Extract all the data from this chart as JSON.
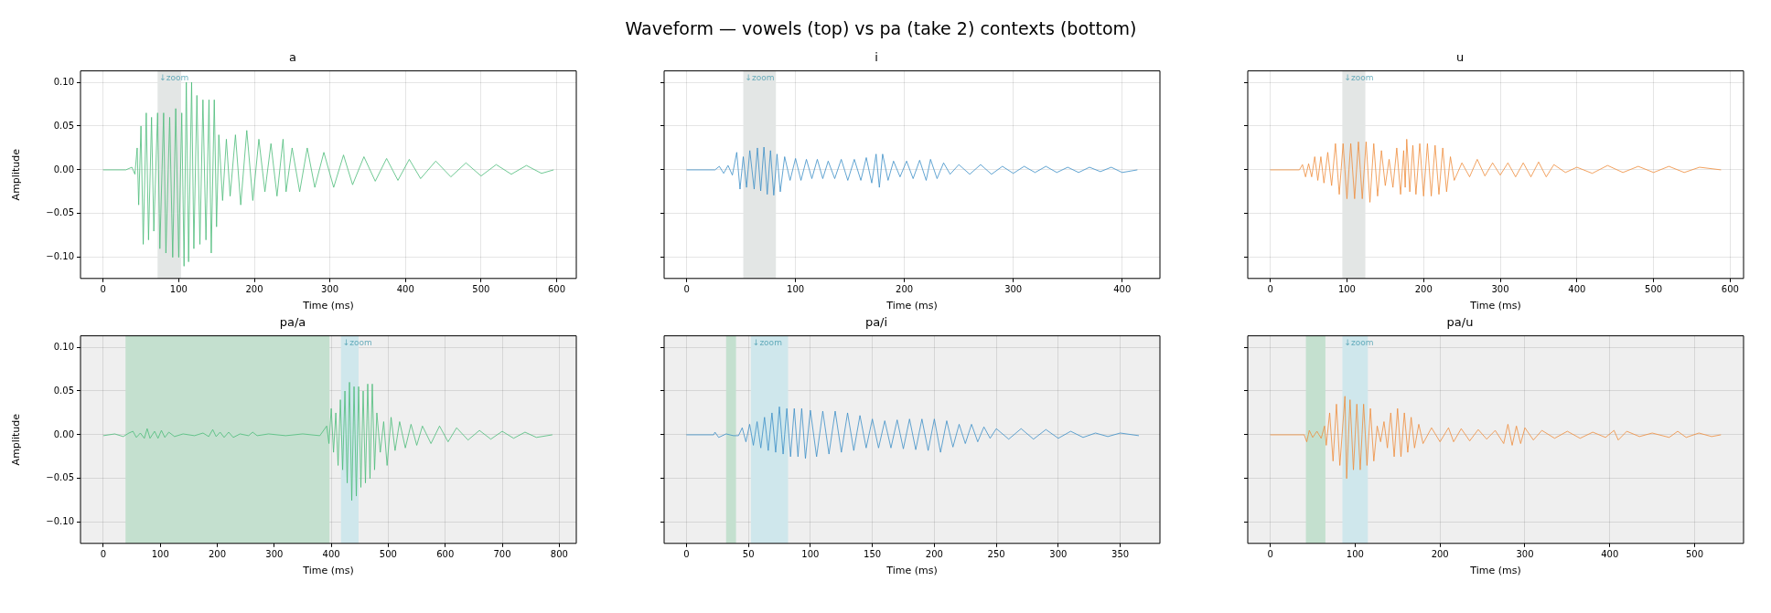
{
  "chart_data": [
    {
      "type": "line",
      "title": "a",
      "xlabel": "Time (ms)",
      "ylabel": "Amplitude",
      "annotations": [
        "Waveform — vowels (top) vs pa (take 2) contexts (bottom)"
      ],
      "xlim": [
        -30,
        626
      ],
      "ylim": [
        -0.124,
        0.113
      ],
      "xticks": [
        0,
        100,
        200,
        300,
        400,
        500,
        600
      ],
      "yticks": [
        {
          "value": -0.1,
          "label": "−0.10"
        },
        {
          "value": -0.05,
          "label": "−0.05"
        },
        {
          "value": 0,
          "label": "0.00"
        },
        {
          "value": 0.05,
          "label": "0.05"
        },
        {
          "value": 0.1,
          "label": "0.10"
        }
      ],
      "grid": true,
      "bands": [
        {
          "axis": "x",
          "from": 72,
          "to": 103,
          "label": "↓zoom",
          "color": "#e3e6e5"
        }
      ],
      "series": [
        {
          "color": "#4bbb78",
          "x": [
            0,
            30,
            38,
            42,
            45,
            47,
            50,
            53,
            57,
            60,
            64,
            67,
            72,
            75,
            80,
            83,
            88,
            92,
            96,
            100,
            104,
            107,
            110,
            113,
            117,
            120,
            124,
            128,
            132,
            136,
            140,
            143,
            147,
            150,
            153,
            158,
            163,
            168,
            175,
            182,
            190,
            198,
            206,
            214,
            222,
            230,
            238,
            242,
            250,
            260,
            270,
            280,
            292,
            305,
            318,
            330,
            345,
            360,
            375,
            390,
            405,
            420,
            440,
            460,
            480,
            500,
            520,
            540,
            560,
            580,
            596
          ],
          "values": [
            0,
            0,
            0.003,
            -0.005,
            0.025,
            -0.04,
            0.05,
            -0.085,
            0.065,
            -0.08,
            0.06,
            -0.07,
            0.065,
            -0.09,
            0.065,
            -0.095,
            0.06,
            -0.1,
            0.07,
            -0.1,
            0.065,
            -0.11,
            0.1,
            -0.105,
            0.1,
            -0.09,
            0.085,
            -0.085,
            0.08,
            -0.08,
            0.08,
            -0.095,
            0.08,
            -0.065,
            0.04,
            -0.035,
            0.035,
            -0.03,
            0.04,
            -0.04,
            0.045,
            -0.035,
            0.035,
            -0.025,
            0.03,
            -0.03,
            0.035,
            -0.025,
            0.025,
            -0.025,
            0.025,
            -0.02,
            0.02,
            -0.02,
            0.017,
            -0.017,
            0.015,
            -0.013,
            0.013,
            -0.012,
            0.012,
            -0.01,
            0.01,
            -0.008,
            0.008,
            -0.007,
            0.006,
            -0.005,
            0.005,
            -0.004,
            0
          ]
        }
      ]
    },
    {
      "type": "line",
      "title": "i",
      "xlabel": "Time (ms)",
      "xlim": [
        -20.7,
        434.7
      ],
      "ylim": [
        -0.124,
        0.113
      ],
      "xticks": [
        0,
        100,
        200,
        300,
        400
      ],
      "yticks": [
        {
          "value": -0.1,
          "label": null
        },
        {
          "value": -0.05,
          "label": null
        },
        {
          "value": 0,
          "label": null
        },
        {
          "value": 0.05,
          "label": null
        },
        {
          "value": 0.1,
          "label": null
        }
      ],
      "grid": true,
      "tick_labels": "x",
      "bands": [
        {
          "axis": "x",
          "from": 52,
          "to": 82,
          "label": "↓zoom",
          "color": "#e3e6e5"
        }
      ],
      "series": [
        {
          "color": "#3b8ec6",
          "x": [
            0,
            26,
            30,
            34,
            38,
            42,
            46,
            49,
            52,
            55,
            58,
            62,
            65,
            68,
            71,
            74,
            77,
            80,
            83,
            86,
            90,
            95,
            100,
            105,
            110,
            115,
            120,
            125,
            130,
            136,
            142,
            148,
            154,
            160,
            165,
            170,
            174,
            177,
            180,
            185,
            190,
            196,
            202,
            208,
            214,
            220,
            224,
            230,
            236,
            242,
            250,
            260,
            270,
            280,
            290,
            300,
            310,
            320,
            330,
            340,
            350,
            360,
            370,
            380,
            390,
            400,
            414
          ],
          "values": [
            0,
            0,
            0.004,
            -0.004,
            0.005,
            -0.006,
            0.02,
            -0.022,
            0.015,
            -0.02,
            0.022,
            -0.022,
            0.025,
            -0.024,
            0.026,
            -0.028,
            0.022,
            -0.029,
            0.018,
            -0.025,
            0.015,
            -0.012,
            0.013,
            -0.012,
            0.012,
            -0.01,
            0.012,
            -0.01,
            0.01,
            -0.01,
            0.012,
            -0.012,
            0.012,
            -0.012,
            0.014,
            -0.015,
            0.018,
            -0.02,
            0.018,
            -0.012,
            0.01,
            -0.008,
            0.01,
            -0.01,
            0.011,
            -0.012,
            0.012,
            -0.01,
            0.008,
            -0.005,
            0.006,
            -0.005,
            0.006,
            -0.005,
            0.004,
            -0.004,
            0.004,
            -0.003,
            0.004,
            -0.003,
            0.003,
            -0.003,
            0.003,
            -0.002,
            0.003,
            -0.003,
            0
          ]
        }
      ]
    },
    {
      "type": "line",
      "title": "u",
      "xlabel": "Time (ms)",
      "xlim": [
        -29.4,
        617.4
      ],
      "ylim": [
        -0.124,
        0.113
      ],
      "xticks": [
        0,
        100,
        200,
        300,
        400,
        500,
        600
      ],
      "yticks": [
        {
          "value": -0.1,
          "label": null
        },
        {
          "value": -0.05,
          "label": null
        },
        {
          "value": 0,
          "label": null
        },
        {
          "value": 0.05,
          "label": null
        },
        {
          "value": 0.1,
          "label": null
        }
      ],
      "grid": true,
      "tick_labels": "x",
      "bands": [
        {
          "axis": "x",
          "from": 94,
          "to": 124,
          "label": "↓zoom",
          "color": "#e3e6e5"
        }
      ],
      "series": [
        {
          "color": "#ef8c3a",
          "x": [
            0,
            38,
            42,
            46,
            50,
            54,
            58,
            62,
            66,
            70,
            75,
            80,
            85,
            90,
            95,
            100,
            105,
            110,
            115,
            120,
            125,
            130,
            135,
            140,
            145,
            150,
            155,
            160,
            165,
            170,
            174,
            176,
            178,
            182,
            186,
            190,
            195,
            200,
            205,
            210,
            215,
            220,
            225,
            230,
            235,
            240,
            250,
            260,
            270,
            280,
            290,
            300,
            310,
            320,
            330,
            340,
            350,
            360,
            370,
            385,
            400,
            420,
            440,
            460,
            480,
            500,
            520,
            540,
            560,
            588
          ],
          "values": [
            0,
            0,
            0.006,
            -0.008,
            0.007,
            -0.008,
            0.015,
            -0.012,
            0.015,
            -0.015,
            0.02,
            -0.018,
            0.03,
            -0.028,
            0.03,
            -0.033,
            0.03,
            -0.033,
            0.032,
            -0.033,
            0.032,
            -0.037,
            0.03,
            -0.03,
            0.022,
            -0.018,
            0.012,
            -0.02,
            0.025,
            -0.028,
            0.022,
            -0.02,
            0.035,
            -0.025,
            0.028,
            -0.028,
            0.03,
            -0.03,
            0.03,
            -0.03,
            0.028,
            -0.028,
            0.025,
            -0.025,
            0.015,
            -0.012,
            0.008,
            -0.008,
            0.012,
            -0.007,
            0.008,
            -0.006,
            0.008,
            -0.008,
            0.008,
            -0.008,
            0.009,
            -0.008,
            0.006,
            -0.003,
            0.003,
            -0.004,
            0.005,
            -0.003,
            0.004,
            -0.003,
            0.004,
            -0.003,
            0.003,
            0
          ]
        }
      ]
    },
    {
      "type": "line",
      "title": "pa/a",
      "xlabel": "Time (ms)",
      "ylabel": "Amplitude",
      "xlim": [
        -40,
        830
      ],
      "ylim": [
        -0.124,
        0.113
      ],
      "xticks": [
        0,
        100,
        200,
        300,
        400,
        500,
        600,
        700,
        800
      ],
      "yticks": [
        {
          "value": -0.1,
          "label": "−0.10"
        },
        {
          "value": -0.05,
          "label": "−0.05"
        },
        {
          "value": 0,
          "label": "0.00"
        },
        {
          "value": 0.05,
          "label": "0.05"
        },
        {
          "value": 0.1,
          "label": "0.10"
        }
      ],
      "grid": true,
      "bands": [
        {
          "axis": "x",
          "from": 39,
          "to": 397,
          "color": "#c4e0cf"
        },
        {
          "axis": "x",
          "from": 417,
          "to": 448,
          "label": "↓zoom",
          "color": "#cfe7ec"
        }
      ],
      "series": [
        {
          "color": "#4bbb78",
          "x": [
            0,
            20,
            35,
            45,
            52,
            58,
            65,
            72,
            77,
            82,
            90,
            96,
            102,
            108,
            115,
            125,
            140,
            160,
            175,
            185,
            192,
            198,
            205,
            212,
            220,
            228,
            240,
            255,
            262,
            270,
            290,
            320,
            350,
            380,
            392,
            396,
            400,
            404,
            408,
            412,
            416,
            420,
            424,
            428,
            432,
            436,
            440,
            444,
            448,
            452,
            456,
            460,
            464,
            468,
            472,
            476,
            480,
            486,
            492,
            498,
            505,
            512,
            520,
            530,
            540,
            550,
            560,
            575,
            590,
            605,
            620,
            640,
            660,
            680,
            700,
            720,
            740,
            760,
            788
          ],
          "values": [
            -0.001,
            0.001,
            -0.002,
            0.002,
            0.004,
            -0.003,
            0.002,
            -0.004,
            0.007,
            -0.004,
            0.004,
            -0.004,
            0.005,
            -0.003,
            0.003,
            -0.002,
            0.001,
            -0.001,
            0.002,
            -0.002,
            0.006,
            -0.002,
            0.003,
            -0.003,
            0.003,
            -0.003,
            0.001,
            -0.001,
            0.003,
            -0.001,
            0.001,
            -0.001,
            0.001,
            -0.001,
            0.01,
            -0.01,
            0.03,
            -0.02,
            0.025,
            -0.035,
            0.04,
            -0.04,
            0.05,
            -0.055,
            0.06,
            -0.075,
            0.055,
            -0.07,
            0.055,
            -0.06,
            0.05,
            -0.055,
            0.058,
            -0.05,
            0.058,
            -0.04,
            0.025,
            -0.02,
            0.015,
            -0.035,
            0.02,
            -0.018,
            0.015,
            -0.015,
            0.012,
            -0.012,
            0.01,
            -0.01,
            0.01,
            -0.008,
            0.008,
            -0.006,
            0.005,
            -0.005,
            0.004,
            -0.004,
            0.003,
            -0.003,
            0
          ]
        }
      ]
    },
    {
      "type": "line",
      "title": "pa/i",
      "xlabel": "Time (ms)",
      "xlim": [
        -18,
        382
      ],
      "ylim": [
        -0.124,
        0.113
      ],
      "xticks": [
        0,
        50,
        100,
        150,
        200,
        250,
        300,
        350
      ],
      "yticks": [
        {
          "value": -0.1,
          "label": null
        },
        {
          "value": -0.05,
          "label": null
        },
        {
          "value": 0,
          "label": null
        },
        {
          "value": 0.05,
          "label": null
        },
        {
          "value": 0.1,
          "label": null
        }
      ],
      "grid": true,
      "tick_labels": "x",
      "bands": [
        {
          "axis": "x",
          "from": 32,
          "to": 40,
          "color": "#c4e0cf"
        },
        {
          "axis": "x",
          "from": 52,
          "to": 82,
          "label": "↓zoom",
          "color": "#cfe7ec"
        }
      ],
      "series": [
        {
          "color": "#3b8ec6",
          "x": [
            0,
            22,
            23,
            26,
            32,
            38,
            42,
            45,
            48,
            51,
            54,
            57,
            60,
            63,
            66,
            69,
            72,
            75,
            78,
            81,
            84,
            87,
            90,
            93,
            96,
            100,
            105,
            110,
            115,
            120,
            125,
            130,
            135,
            140,
            145,
            150,
            155,
            160,
            165,
            170,
            175,
            180,
            185,
            190,
            195,
            200,
            205,
            210,
            215,
            220,
            225,
            230,
            235,
            240,
            245,
            250,
            260,
            270,
            280,
            290,
            300,
            310,
            320,
            330,
            340,
            350,
            365
          ],
          "values": [
            0,
            0,
            0.003,
            -0.003,
            0.001,
            -0.001,
            -0.001,
            0.008,
            -0.008,
            0.012,
            -0.012,
            0.015,
            -0.015,
            0.02,
            -0.018,
            0.025,
            -0.02,
            0.032,
            -0.022,
            0.03,
            -0.025,
            0.03,
            -0.025,
            0.03,
            -0.027,
            0.028,
            -0.025,
            0.027,
            -0.022,
            0.027,
            -0.02,
            0.025,
            -0.018,
            0.022,
            -0.015,
            0.018,
            -0.015,
            0.016,
            -0.015,
            0.017,
            -0.016,
            0.018,
            -0.017,
            0.018,
            -0.018,
            0.018,
            -0.02,
            0.016,
            -0.014,
            0.012,
            -0.01,
            0.012,
            -0.008,
            0.009,
            -0.004,
            0.007,
            -0.005,
            0.007,
            -0.005,
            0.006,
            -0.004,
            0.004,
            -0.003,
            0.002,
            -0.002,
            0.002,
            -0.001
          ]
        }
      ]
    },
    {
      "type": "line",
      "title": "pa/u",
      "xlabel": "Time (ms)",
      "xlim": [
        -26.5,
        557.6
      ],
      "ylim": [
        -0.124,
        0.113
      ],
      "xticks": [
        0,
        100,
        200,
        300,
        400,
        500
      ],
      "yticks": [
        {
          "value": -0.1,
          "label": null
        },
        {
          "value": -0.05,
          "label": null
        },
        {
          "value": 0,
          "label": null
        },
        {
          "value": 0.05,
          "label": null
        },
        {
          "value": 0.1,
          "label": null
        }
      ],
      "grid": true,
      "tick_labels": "x",
      "bands": [
        {
          "axis": "x",
          "from": 42,
          "to": 65,
          "color": "#c4e0cf"
        },
        {
          "axis": "x",
          "from": 85,
          "to": 115,
          "label": "↓zoom",
          "color": "#cfe7ec"
        }
      ],
      "series": [
        {
          "color": "#ef8c3a",
          "x": [
            0,
            40,
            43,
            46,
            50,
            55,
            60,
            64,
            66,
            70,
            74,
            78,
            82,
            88,
            90,
            94,
            98,
            102,
            106,
            110,
            114,
            118,
            122,
            126,
            130,
            134,
            138,
            142,
            146,
            150,
            154,
            158,
            162,
            166,
            170,
            175,
            180,
            190,
            200,
            210,
            216,
            225,
            235,
            245,
            255,
            265,
            275,
            280,
            285,
            290,
            295,
            300,
            310,
            320,
            335,
            350,
            365,
            380,
            395,
            405,
            410,
            420,
            435,
            450,
            470,
            480,
            490,
            505,
            520,
            531
          ],
          "values": [
            0,
            0,
            -0.008,
            0.005,
            -0.003,
            0.004,
            -0.004,
            0.01,
            -0.012,
            0.025,
            -0.03,
            0.035,
            -0.035,
            0.044,
            -0.05,
            0.04,
            -0.04,
            0.035,
            -0.04,
            0.035,
            -0.035,
            0.03,
            -0.03,
            0.01,
            -0.008,
            0.015,
            -0.015,
            0.025,
            -0.025,
            0.03,
            -0.025,
            0.025,
            -0.02,
            0.02,
            -0.015,
            0.012,
            -0.01,
            0.008,
            -0.008,
            0.008,
            -0.008,
            0.007,
            -0.007,
            0.006,
            -0.005,
            0.005,
            -0.01,
            0.012,
            -0.012,
            0.01,
            -0.01,
            0.008,
            -0.006,
            0.005,
            -0.004,
            0.004,
            -0.004,
            0.003,
            -0.003,
            0.005,
            -0.006,
            0.004,
            -0.002,
            0.002,
            -0.003,
            0.004,
            -0.003,
            0.002,
            -0.002,
            0
          ]
        }
      ]
    }
  ]
}
